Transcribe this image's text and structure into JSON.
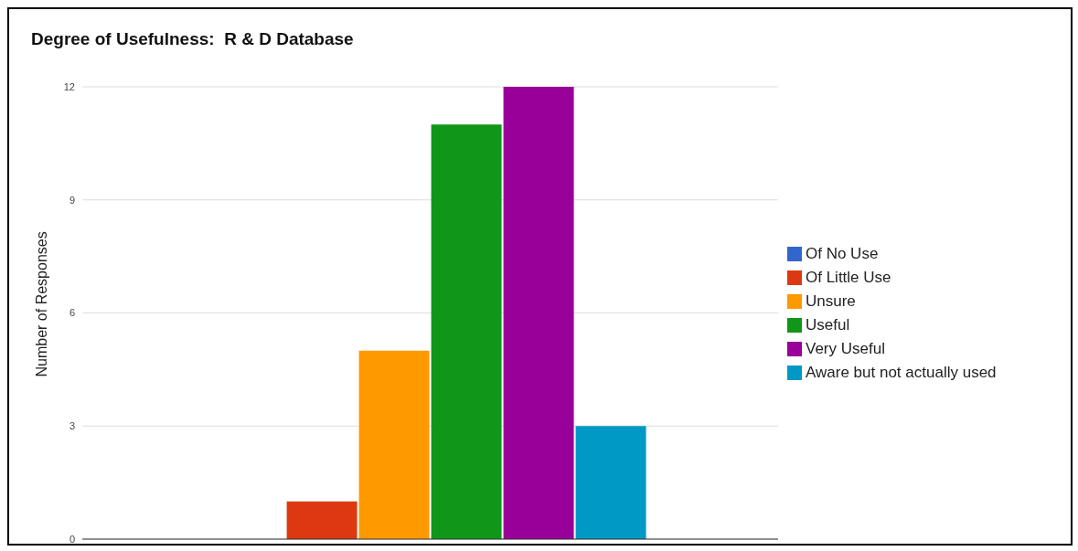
{
  "chart_data": {
    "type": "bar",
    "title": "Degree of Usefulness:  R & D Database",
    "ylabel": "Number of Responses",
    "categories": [
      null
    ],
    "series": [
      {
        "name": "Of No Use",
        "color": "#3366cc",
        "values": [
          0
        ]
      },
      {
        "name": "Of Little Use",
        "color": "#dc3912",
        "values": [
          1
        ]
      },
      {
        "name": "Unsure",
        "color": "#ff9900",
        "values": [
          5
        ]
      },
      {
        "name": "Useful",
        "color": "#109618",
        "values": [
          11
        ]
      },
      {
        "name": "Very Useful",
        "color": "#990099",
        "values": [
          12
        ]
      },
      {
        "name": "Aware but not actually used",
        "color": "#0099c6",
        "values": [
          3
        ]
      }
    ],
    "ylim": [
      0,
      12
    ],
    "yticks": [
      0,
      3,
      6,
      9,
      12
    ],
    "grid": "y",
    "legend": "right"
  }
}
